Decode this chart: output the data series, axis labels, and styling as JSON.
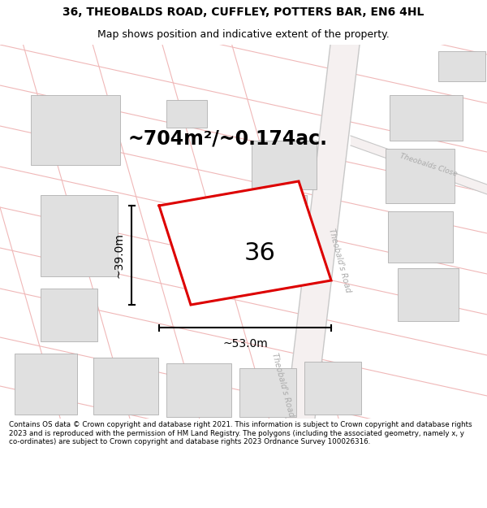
{
  "title": "36, THEOBALDS ROAD, CUFFLEY, POTTERS BAR, EN6 4HL",
  "subtitle": "Map shows position and indicative extent of the property.",
  "area_text": "~704m²/~0.174ac.",
  "dim_width": "~53.0m",
  "dim_height": "~39.0m",
  "plot_label": "36",
  "copyright_text": "Contains OS data © Crown copyright and database right 2021. This information is subject to Crown copyright and database rights 2023 and is reproduced with the permission of HM Land Registry. The polygons (including the associated geometry, namely x, y co-ordinates) are subject to Crown copyright and database rights 2023 Ordnance Survey 100026316.",
  "map_bg": "#ffffff",
  "plot_color": "#dd0000",
  "building_color": "#e0e0e0",
  "building_edge": "#b0b0b0",
  "road_line_color": "#f0b8b8",
  "road_fill_color": "#f8eded",
  "road_gray": "#c8c8c8",
  "text_color": "#000000",
  "road_label_color": "#aaaaaa",
  "title_fontsize": 10,
  "subtitle_fontsize": 9,
  "area_fontsize": 17,
  "dim_fontsize": 10,
  "label_fontsize": 22,
  "copyright_fontsize": 6.3
}
